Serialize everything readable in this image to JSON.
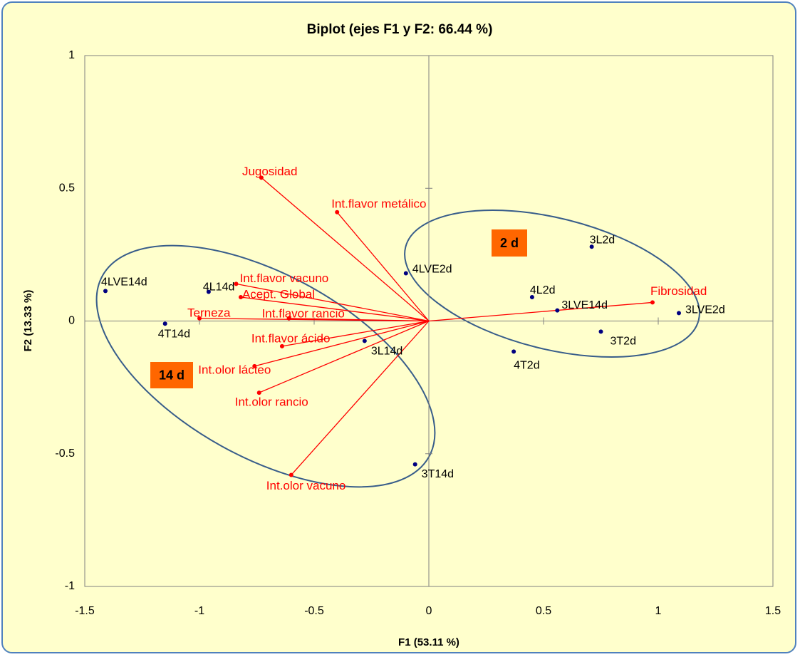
{
  "chart_data": {
    "type": "biplot",
    "title": "Biplot (ejes F1 y F2: 66.44 %)",
    "xlabel": "F1 (53.11 %)",
    "ylabel": "F2 (13.33 %)",
    "xlim": [
      -1.5,
      1.5
    ],
    "ylim": [
      -1,
      1
    ],
    "xticks": [
      -1.5,
      -1,
      -0.5,
      0,
      0.5,
      1,
      1.5
    ],
    "yticks": [
      -1,
      -0.5,
      0,
      0.5,
      1
    ],
    "points": {
      "color": "#000080",
      "labels": [
        "4LVE14d",
        "4L14d",
        "4T14d",
        "4LVE2d",
        "3L14d",
        "3T14d",
        "3L2d",
        "4L2d",
        "3LVE14d",
        "3LVE2d",
        "3T2d",
        "4T2d"
      ],
      "x": [
        -1.41,
        -0.96,
        -1.15,
        -0.1,
        -0.28,
        -0.06,
        0.71,
        0.45,
        0.56,
        1.09,
        0.75,
        0.37
      ],
      "y": [
        0.113,
        0.11,
        -0.01,
        0.18,
        -0.075,
        -0.54,
        0.28,
        0.09,
        0.04,
        0.03,
        -0.04,
        -0.115
      ]
    },
    "vectors": {
      "color": "#ff0000",
      "labels": [
        "Jugosidad",
        "Int.flavor metálico",
        "Int.flavor vacuno",
        "Acept. Global",
        "Int.flavor rancio",
        "Terneza",
        "Int.flavor ácido",
        "Int.olor lácteo",
        "Int.olor rancio",
        "Int.olor vacuno",
        "Fibrosidad"
      ],
      "x": [
        -0.73,
        -0.4,
        -0.84,
        -0.82,
        -0.61,
        -1.0,
        -0.64,
        -0.76,
        -0.74,
        -0.6,
        0.975
      ],
      "y": [
        0.54,
        0.41,
        0.14,
        0.09,
        0.01,
        0.01,
        -0.095,
        -0.17,
        -0.27,
        -0.58,
        0.07
      ]
    },
    "annotations": [
      {
        "text": "2 d"
      },
      {
        "text": "14 d"
      }
    ]
  }
}
